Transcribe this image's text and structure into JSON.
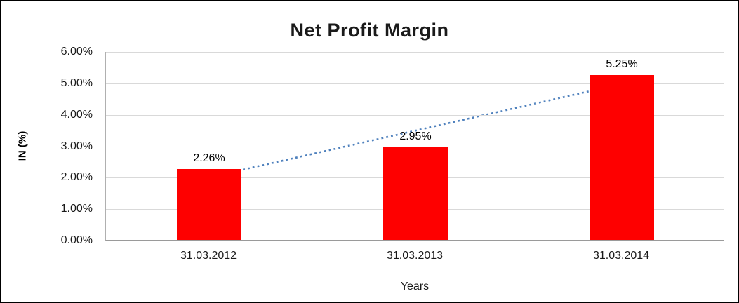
{
  "chart_data": {
    "type": "bar",
    "title": "Net Profit Margin",
    "categories": [
      "31.03.2012",
      "31.03.2013",
      "31.03.2014"
    ],
    "values": [
      2.26,
      2.95,
      5.25
    ],
    "value_labels": [
      "2.26%",
      "2.95%",
      "5.25%"
    ],
    "xlabel": "Years",
    "ylabel": "IN (%)",
    "ylim": [
      0,
      6
    ],
    "ytick_step": 1,
    "ytick_labels": [
      "0.00%",
      "1.00%",
      "2.00%",
      "3.00%",
      "4.00%",
      "5.00%",
      "6.00%"
    ],
    "grid": true,
    "legend": "none",
    "bar_color": "#fe0000",
    "trendline": {
      "style": "dotted",
      "color": "#4f81bd",
      "start_value": 2.0,
      "end_value": 4.97
    }
  }
}
